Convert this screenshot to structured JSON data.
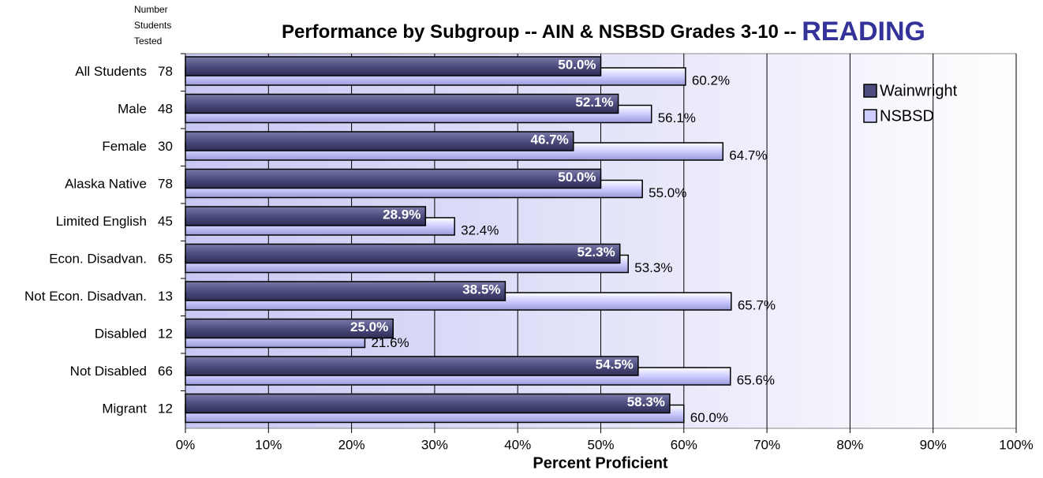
{
  "chart_data": {
    "type": "hbar",
    "title": "Performance by Subgroup -- AIN & NSBSD Grades 3-10 --",
    "title_highlight": "READING",
    "count_header": [
      "Number",
      "Students",
      "Tested"
    ],
    "x_label": "Percent Proficient",
    "categories": [
      "All Students",
      "Male",
      "Female",
      "Alaska Native",
      "Limited English",
      "Econ. Disadvan.",
      "Not Econ. Disadvan.",
      "Disabled",
      "Not Disabled",
      "Migrant"
    ],
    "counts": [
      78,
      48,
      30,
      78,
      45,
      65,
      13,
      12,
      66,
      12
    ],
    "series": [
      {
        "name": "Wainwright",
        "color": "#4d4d80",
        "values": [
          50.0,
          52.1,
          46.7,
          50.0,
          28.9,
          52.3,
          38.5,
          25.0,
          54.5,
          58.3
        ],
        "value_labels": [
          "50.0%",
          "52.1%",
          "46.7%",
          "50.0%",
          "28.9%",
          "52.3%",
          "38.5%",
          "25.0%",
          "54.5%",
          "58.3%"
        ]
      },
      {
        "name": "NSBSD",
        "color": "#ccccff",
        "values": [
          60.2,
          56.1,
          64.7,
          55.0,
          32.4,
          53.3,
          65.7,
          21.6,
          65.6,
          60.0
        ],
        "value_labels": [
          "60.2%",
          "56.1%",
          "64.7%",
          "55.0%",
          "32.4%",
          "53.3%",
          "65.7%",
          "21.6%",
          "65.6%",
          "60.0%"
        ]
      }
    ],
    "xlim": [
      0,
      100
    ],
    "xticks": [
      {
        "value": 0,
        "label": "0%"
      },
      {
        "value": 10,
        "label": "10%"
      },
      {
        "value": 20,
        "label": "20%"
      },
      {
        "value": 30,
        "label": "30%"
      },
      {
        "value": 40,
        "label": "40%"
      },
      {
        "value": 50,
        "label": "50%"
      },
      {
        "value": 60,
        "label": "60%"
      },
      {
        "value": 70,
        "label": "70%"
      },
      {
        "value": 80,
        "label": "80%"
      },
      {
        "value": 90,
        "label": "90%"
      },
      {
        "value": 100,
        "label": "100%"
      }
    ],
    "grid": true,
    "legend": "top-right"
  }
}
